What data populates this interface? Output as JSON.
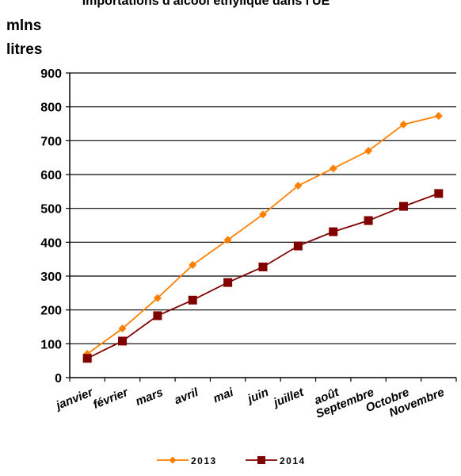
{
  "chart_data": {
    "type": "line",
    "title": "Importations d'alcool éthylique dans l'UE",
    "ylabel": [
      "mlns",
      "litres"
    ],
    "xlabel": "",
    "ylim": [
      0,
      900
    ],
    "yticks": [
      0,
      100,
      200,
      300,
      400,
      500,
      600,
      700,
      800,
      900
    ],
    "grid": true,
    "legend": "bottom",
    "categories": [
      "janvier",
      "février",
      "mars",
      "avril",
      "mai",
      "juin",
      "juillet",
      "août",
      "Septembre",
      "Octobre",
      "Novembre"
    ],
    "series": [
      {
        "name": "2013",
        "color": "#ff8000",
        "marker": "diamond",
        "values": [
          70,
          145,
          235,
          333,
          407,
          482,
          567,
          618,
          670,
          748,
          773
        ]
      },
      {
        "name": "2014",
        "color": "#800000",
        "marker": "square",
        "values": [
          57,
          108,
          183,
          229,
          281,
          327,
          389,
          431,
          464,
          506,
          544
        ]
      }
    ]
  }
}
